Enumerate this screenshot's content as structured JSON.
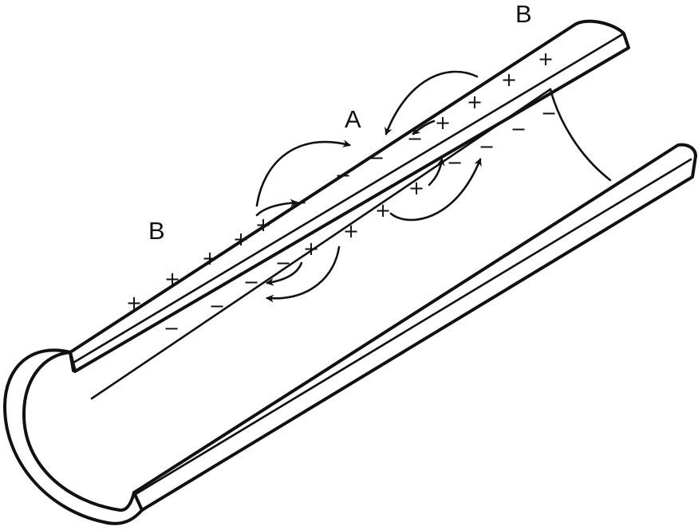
{
  "labels": {
    "A": "A",
    "B_left": "B",
    "B_right": "B"
  },
  "symbols": {
    "plus": "+",
    "minus": "−"
  }
}
